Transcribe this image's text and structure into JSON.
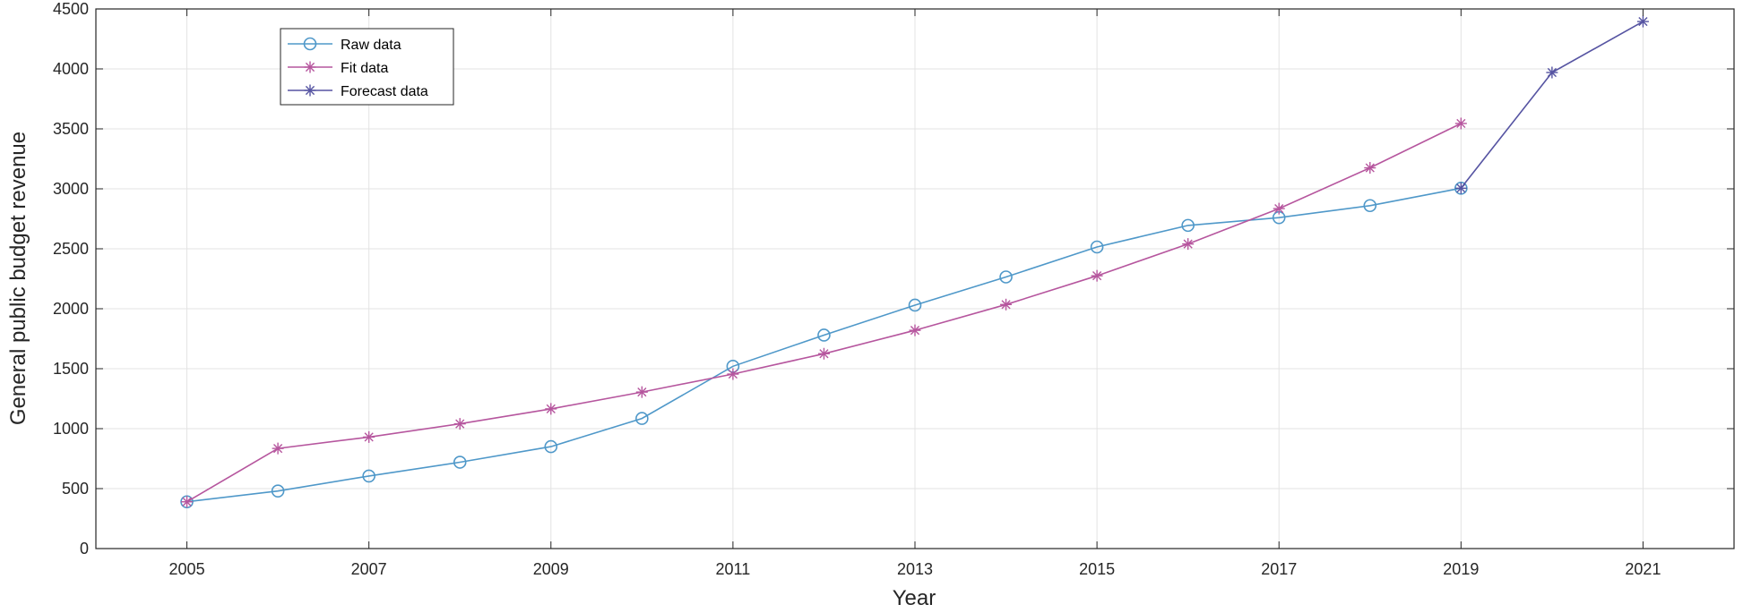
{
  "chart_data": {
    "type": "line",
    "xlabel": "Year",
    "ylabel": "General public budget revenue",
    "xlim": [
      2004,
      2022
    ],
    "ylim": [
      0,
      4500
    ],
    "x_ticks": [
      2005,
      2007,
      2009,
      2011,
      2013,
      2015,
      2017,
      2019,
      2021
    ],
    "y_ticks": [
      0,
      500,
      1000,
      1500,
      2000,
      2500,
      3000,
      3500,
      4000,
      4500
    ],
    "grid": true,
    "legend_position": "top-left",
    "series": [
      {
        "name": "Raw data",
        "color": "#4f98c9",
        "marker": "circle",
        "x": [
          2005,
          2006,
          2007,
          2008,
          2009,
          2010,
          2011,
          2012,
          2013,
          2014,
          2015,
          2016,
          2017,
          2018,
          2019
        ],
        "y": [
          390,
          480,
          605,
          720,
          850,
          1085,
          1520,
          1780,
          2030,
          2265,
          2515,
          2695,
          2760,
          2860,
          3005
        ]
      },
      {
        "name": "Fit data",
        "color": "#b6569e",
        "marker": "asterisk",
        "x": [
          2005,
          2006,
          2007,
          2008,
          2009,
          2010,
          2011,
          2012,
          2013,
          2014,
          2015,
          2016,
          2017,
          2018,
          2019
        ],
        "y": [
          390,
          835,
          930,
          1040,
          1165,
          1305,
          1455,
          1625,
          1820,
          2035,
          2275,
          2540,
          2835,
          3175,
          3545
        ]
      },
      {
        "name": "Forecast data",
        "color": "#5654a2",
        "marker": "asterisk",
        "x": [
          2019,
          2020,
          2021
        ],
        "y": [
          3005,
          3970,
          4395
        ]
      }
    ]
  }
}
